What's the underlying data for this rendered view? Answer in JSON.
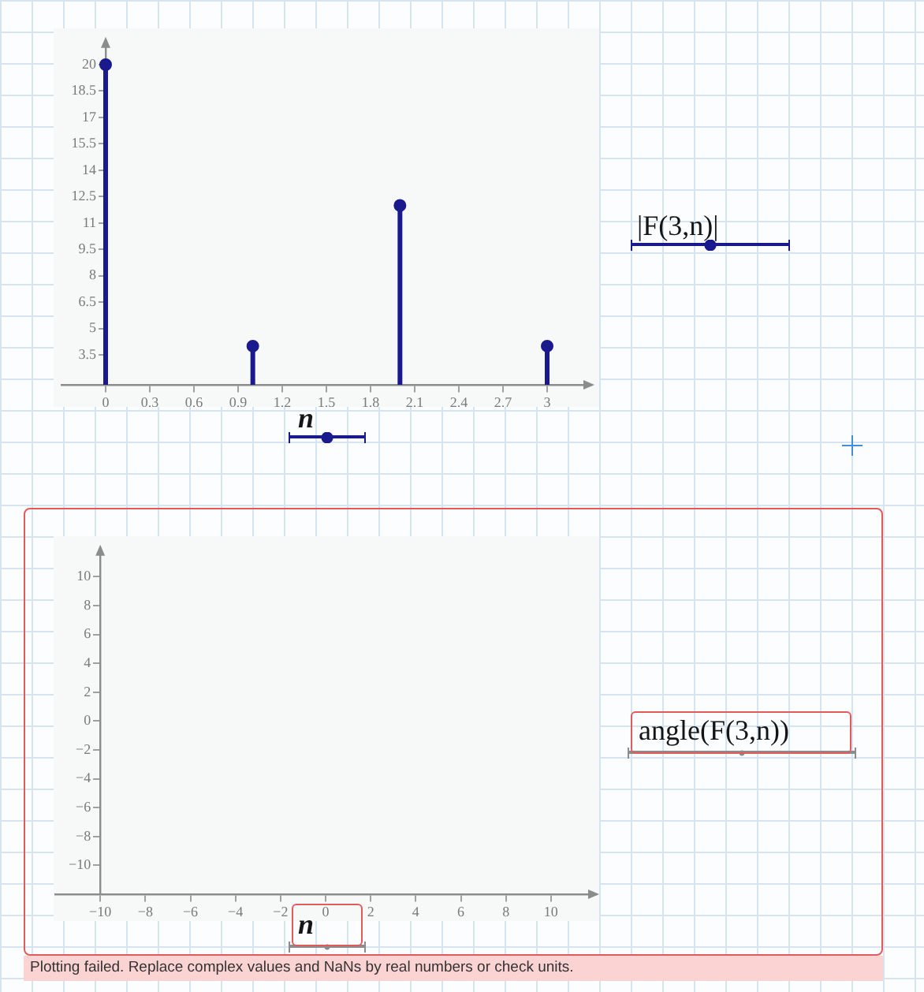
{
  "chart_data": [
    {
      "type": "lollipop",
      "xlabel": "n",
      "x": [
        0,
        1,
        2,
        3
      ],
      "series": [
        {
          "name": "|F(3,n)|",
          "color": "#1a1a8e",
          "values": [
            20,
            4,
            12,
            4
          ]
        }
      ],
      "marker": "circle",
      "legend": "right",
      "xlim": [
        -0.3,
        3.3
      ],
      "ylim": [
        1.8,
        21.4
      ],
      "xticks": [
        0,
        0.3,
        0.6,
        0.9,
        1.2,
        1.5,
        1.8,
        2.1,
        2.4,
        2.7,
        3
      ],
      "yticks": [
        3.5,
        5,
        6.5,
        8,
        9.5,
        11,
        12.5,
        14,
        15.5,
        17,
        18.5,
        20
      ]
    },
    {
      "type": "line",
      "xlabel": "n",
      "ylabel": "angle(F(3,n))",
      "xlim": [
        -12,
        12
      ],
      "ylim": [
        -12,
        12
      ],
      "xticks": [
        {
          "value": -10,
          "label": "−10"
        },
        {
          "value": -8,
          "label": "−8"
        },
        {
          "value": -6,
          "label": "−6"
        },
        {
          "value": -4,
          "label": "−4"
        },
        {
          "value": -2,
          "label": "−2"
        },
        0,
        2,
        4,
        6,
        8,
        10
      ],
      "yticks": [
        {
          "value": -10,
          "label": "−10"
        },
        {
          "value": -8,
          "label": "−8"
        },
        {
          "value": -6,
          "label": "−6"
        },
        {
          "value": -4,
          "label": "−4"
        },
        {
          "value": -2,
          "label": "−2"
        },
        0,
        2,
        4,
        6,
        8,
        10
      ],
      "annotations": [
        "Plotting failed. Replace complex values and NaNs by real numbers or check units."
      ]
    }
  ]
}
